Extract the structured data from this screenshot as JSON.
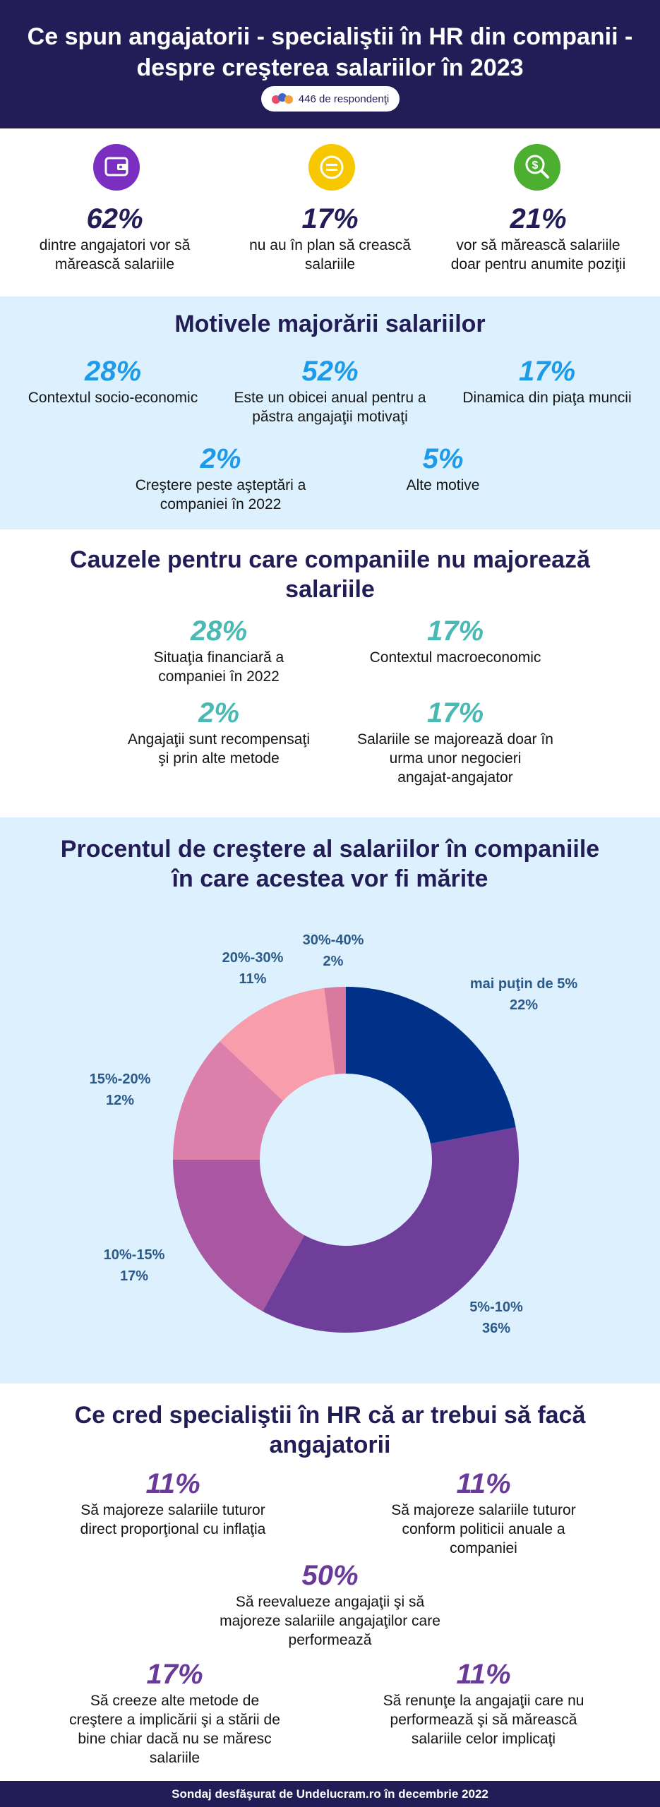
{
  "header": {
    "title_line1": "Ce spun angajatorii - specialiştii în HR din companii -",
    "title_line2": "despre creşterea salariilor în 2023",
    "respondents": "446 de respondenţi"
  },
  "top_stats": [
    {
      "icon": "wallet-icon",
      "color": "#7b2fc0",
      "pct": "62%",
      "line1": "dintre angajatori vor să",
      "line2": "mărească salariile"
    },
    {
      "icon": "equal-icon",
      "color": "#f7c800",
      "pct": "17%",
      "line1": "nu au în plan să crească",
      "line2": "salariile"
    },
    {
      "icon": "money-search-icon",
      "color": "#4caf2f",
      "pct": "21%",
      "line1": "vor să mărească salariile",
      "line2": "doar pentru anumite poziţii"
    }
  ],
  "reasons": {
    "title": "Motivele majorării salariilor",
    "color": "#1e9be8",
    "items": [
      {
        "pct": "28%",
        "line1": "Contextul socio-economic",
        "line2": ""
      },
      {
        "pct": "52%",
        "line1": "Este un obicei anual pentru a",
        "line2": "păstra angajaţii motivaţi"
      },
      {
        "pct": "17%",
        "line1": "Dinamica din piaţa muncii",
        "line2": ""
      },
      {
        "pct": "2%",
        "line1": "Creştere peste aşteptări a",
        "line2": "companiei în 2022"
      },
      {
        "pct": "5%",
        "line1": "Alte motive",
        "line2": ""
      }
    ]
  },
  "causes": {
    "title_line1": "Cauzele pentru care companiile nu majorează",
    "title_line2": "salariile",
    "color": "#4ab8b3",
    "items": [
      {
        "pct": "28%",
        "line1": "Situaţia financiară a",
        "line2": "companiei în 2022",
        "line3": ""
      },
      {
        "pct": "17%",
        "line1": "Contextul macroeconomic",
        "line2": "",
        "line3": ""
      },
      {
        "pct": "2%",
        "line1": "Angajaţii sunt recompensaţi",
        "line2": "şi prin alte metode",
        "line3": ""
      },
      {
        "pct": "17%",
        "line1": "Salariile se majorează doar în",
        "line2": "urma unor negocieri",
        "line3": "angajat-angajator"
      }
    ]
  },
  "chart_section": {
    "title_line1": "Procentul de creştere al salariilor în companiile",
    "title_line2": "în care acestea vor fi mărite"
  },
  "chart_data": {
    "type": "pie",
    "donut": true,
    "categories": [
      "mai puţin de 5%",
      "5%-10%",
      "10%-15%",
      "15%-20%",
      "20%-30%",
      "30%-40%"
    ],
    "values": [
      22,
      36,
      17,
      12,
      11,
      2
    ],
    "value_labels": [
      "22%",
      "36%",
      "17%",
      "12%",
      "11%",
      "2%"
    ],
    "colors": [
      "#003087",
      "#6f3d9a",
      "#a957a3",
      "#dd7fab",
      "#f89dab",
      "#d8799e"
    ],
    "label_color": "#2b5a8a",
    "title": "",
    "legend": "none"
  },
  "hr_opinion": {
    "title_line1": "Ce cred specialiştii în HR că ar trebui să facă",
    "title_line2": "angajatorii",
    "color": "#6a3a98",
    "items": [
      {
        "pct": "11%",
        "line1": "Să majoreze salariile tuturor",
        "line2": "direct proporţional cu inflaţia",
        "line3": "",
        "line4": ""
      },
      {
        "pct": "11%",
        "line1": "Să majoreze salariile tuturor",
        "line2": "conform politicii anuale a",
        "line3": "companiei",
        "line4": ""
      },
      {
        "pct": "50%",
        "line1": "Să reevalueze angajaţii şi să",
        "line2": "majoreze salariile angajaţilor care",
        "line3": "performează",
        "line4": ""
      },
      {
        "pct": "17%",
        "line1": "Să creeze alte metode de",
        "line2": "creştere a implicării şi a stării de",
        "line3": "bine chiar dacă nu se măresc",
        "line4": "salariile"
      },
      {
        "pct": "11%",
        "line1": "Să renunţe la angajaţii care nu",
        "line2": "performează şi să mărească",
        "line3": "salariile celor implicaţi",
        "line4": ""
      }
    ]
  },
  "footer": {
    "text": "Sondaj desfăşurat de Undelucram.ro în decembrie 2022"
  }
}
